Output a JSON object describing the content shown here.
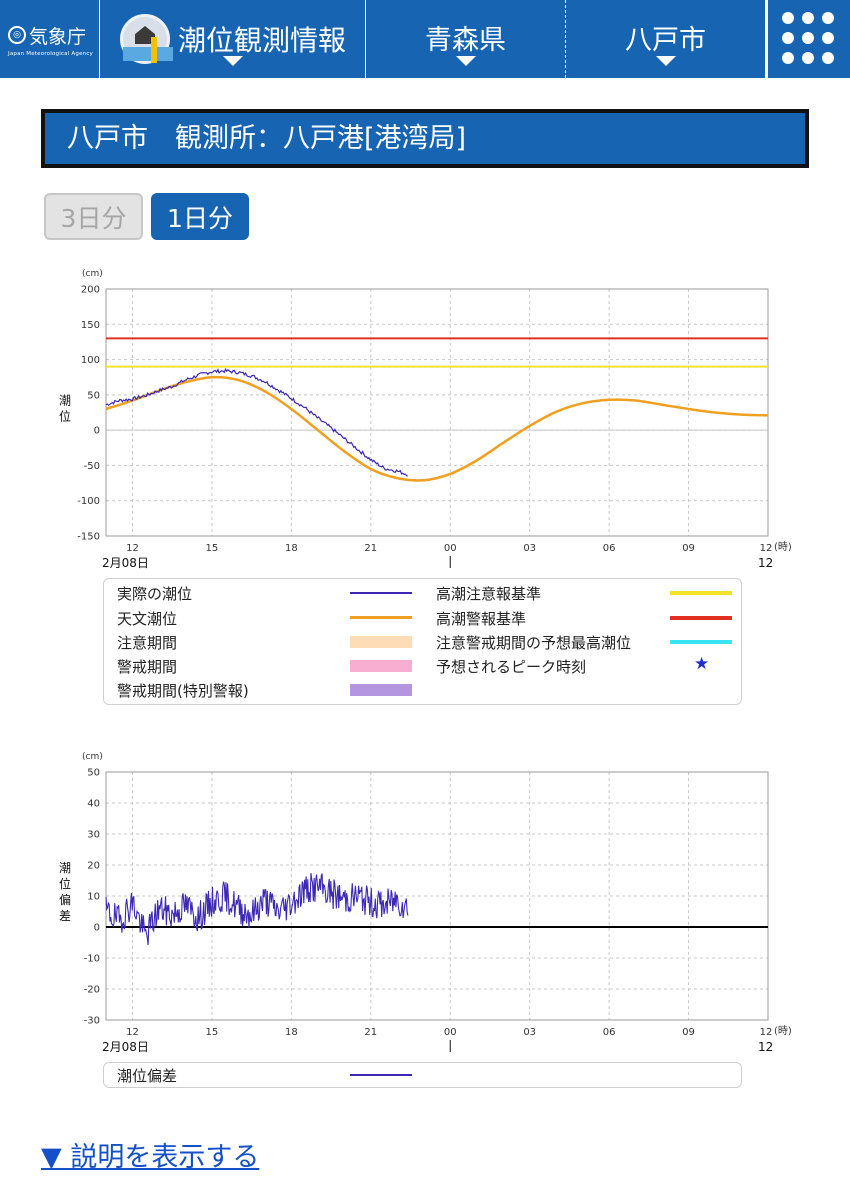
{
  "header": {
    "logo_text": "気象庁",
    "logo_sub": "Japan Meteorological Agency",
    "menu_title": "潮位観測情報",
    "prefecture": "青森県",
    "city": "八戸市"
  },
  "station_title": "八戸市　観測所：八戸港[港湾局]",
  "range_buttons": [
    "3日分",
    "1日分"
  ],
  "colors": {
    "accent": "#1764b3",
    "observed": "#3c28b4",
    "astronomical": "#f0a020",
    "advisory": "#f2e22a",
    "warning": "#e03020",
    "advisory_period": "#fddcb6",
    "warning_period": "#f7aed0",
    "special_warning_period": "#b495e0",
    "forecast_max": "#37e5f5",
    "peak_star": "#1b2fc8"
  },
  "chart_tide": {
    "unit": "(cm)",
    "ylabel": "潮位",
    "yticks": [
      "200",
      "150",
      "100",
      "50",
      "0",
      "-50",
      "-100",
      "-150"
    ],
    "xticks": [
      "12",
      "15",
      "18",
      "21",
      "00",
      "03",
      "06",
      "09",
      "12"
    ],
    "date_label": "2月08日",
    "hour_unit": "(時)"
  },
  "chart_diff": {
    "unit": "(cm)",
    "ylabel": "潮位偏差",
    "yticks": [
      "50",
      "40",
      "30",
      "20",
      "10",
      "0",
      "-10",
      "-20",
      "-30"
    ],
    "xticks": [
      "12",
      "15",
      "18",
      "21",
      "00",
      "03",
      "06",
      "09",
      "12"
    ],
    "date_label": "2月08日",
    "hour_unit": "(時)"
  },
  "legend": {
    "observed": "実際の潮位",
    "astronomical": "天文潮位",
    "advisory_period": "注意期間",
    "warning_period": "警戒期間",
    "special_warning_period": "警戒期間(特別警報)",
    "advisory_level": "高潮注意報基準",
    "warning_level": "高潮警報基準",
    "forecast_max": "注意警戒期間の予想最高潮位",
    "peak_time": "予想されるピーク時刻"
  },
  "legend2": {
    "tide_deviation": "潮位偏差"
  },
  "explain_link": "▼ 説明を表示する",
  "chart_data": [
    {
      "type": "line",
      "x_unit": "hours from 2月08日 11:00",
      "xlim": [
        0,
        25
      ],
      "ylim": [
        -150,
        200
      ],
      "advisory_level_cm": 90,
      "warning_level_cm": 130,
      "series": [
        {
          "name": "天文潮位",
          "x": [
            0,
            1,
            2,
            3,
            4,
            5,
            6,
            7,
            8,
            9,
            10,
            11,
            12,
            13,
            14,
            15,
            16,
            17,
            18,
            19,
            20,
            21,
            22,
            23,
            24,
            25
          ],
          "values": [
            30,
            42,
            56,
            68,
            75,
            71,
            55,
            30,
            0,
            -30,
            -55,
            -68,
            -71,
            -62,
            -43,
            -18,
            6,
            26,
            38,
            43,
            42,
            36,
            30,
            25,
            22,
            21
          ]
        },
        {
          "name": "実際の潮位",
          "x": [
            0,
            0.5,
            1,
            1.5,
            2,
            2.5,
            3,
            3.5,
            4,
            4.5,
            5,
            5.5,
            6,
            6.5,
            7,
            7.5,
            8,
            8.5,
            9,
            9.5,
            10,
            10.5,
            11,
            11.4
          ],
          "values": [
            36,
            42,
            44,
            49,
            56,
            62,
            71,
            78,
            83,
            84,
            82,
            77,
            69,
            57,
            45,
            32,
            17,
            3,
            -12,
            -27,
            -42,
            -54,
            -58,
            -63
          ]
        }
      ]
    },
    {
      "type": "line",
      "x_unit": "hours from 2月08日 11:00",
      "xlim": [
        0,
        25
      ],
      "ylim": [
        -30,
        50
      ],
      "series": [
        {
          "name": "潮位偏差",
          "x": [
            0,
            0.5,
            1,
            1.5,
            2,
            2.5,
            3,
            3.5,
            4,
            4.5,
            5,
            5.5,
            6,
            6.5,
            7,
            7.5,
            8,
            8.5,
            9,
            9.5,
            10,
            10.5,
            11,
            11.4
          ],
          "values": [
            5,
            2,
            8,
            -3,
            6,
            4,
            7,
            3,
            8,
            10,
            6,
            4,
            9,
            5,
            8,
            12,
            13,
            11,
            9,
            10,
            8,
            7,
            9,
            6
          ]
        }
      ]
    }
  ]
}
